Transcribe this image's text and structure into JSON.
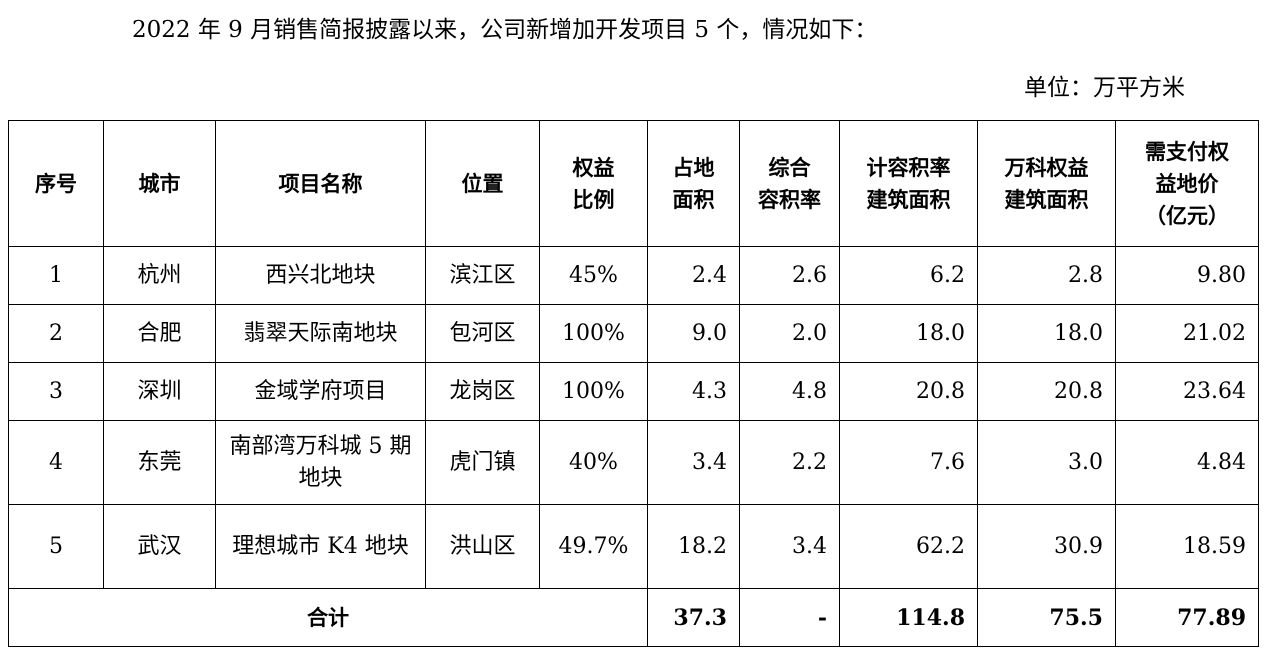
{
  "intro": "2022 年 9 月销售简报披露以来，公司新增加开发项目 5 个，情况如下：",
  "unit": "单位：万平方米",
  "table": {
    "headers": {
      "seq": "序号",
      "city": "城市",
      "name": "项目名称",
      "location": "位置",
      "equity_1": "权益",
      "equity_2": "比例",
      "land_1": "占地",
      "land_2": "面积",
      "far_1": "综合",
      "far_2": "容积率",
      "gfa_1": "计容积率",
      "gfa_2": "建筑面积",
      "vanke_1": "万科权益",
      "vanke_2": "建筑面积",
      "price_1": "需支付权",
      "price_2": "益地价",
      "price_3": "（亿元）"
    },
    "rows": [
      {
        "seq": "1",
        "city": "杭州",
        "name": "西兴北地块",
        "location": "滨江区",
        "equity": "45%",
        "land": "2.4",
        "far": "2.6",
        "gfa": "6.2",
        "vanke": "2.8",
        "price": "9.80"
      },
      {
        "seq": "2",
        "city": "合肥",
        "name": "翡翠天际南地块",
        "location": "包河区",
        "equity": "100%",
        "land": "9.0",
        "far": "2.0",
        "gfa": "18.0",
        "vanke": "18.0",
        "price": "21.02"
      },
      {
        "seq": "3",
        "city": "深圳",
        "name": "金域学府项目",
        "location": "龙岗区",
        "equity": "100%",
        "land": "4.3",
        "far": "4.8",
        "gfa": "20.8",
        "vanke": "20.8",
        "price": "23.64"
      },
      {
        "seq": "4",
        "city": "东莞",
        "name": "南部湾万科城 5 期地块",
        "location": "虎门镇",
        "equity": "40%",
        "land": "3.4",
        "far": "2.2",
        "gfa": "7.6",
        "vanke": "3.0",
        "price": "4.84"
      },
      {
        "seq": "5",
        "city": "武汉",
        "name": "理想城市 K4 地块",
        "location": "洪山区",
        "equity": "49.7%",
        "land": "18.2",
        "far": "3.4",
        "gfa": "62.2",
        "vanke": "30.9",
        "price": "18.59"
      }
    ],
    "total": {
      "label": "合计",
      "land": "37.3",
      "far": "-",
      "gfa": "114.8",
      "vanke": "75.5",
      "price": "77.89"
    }
  }
}
